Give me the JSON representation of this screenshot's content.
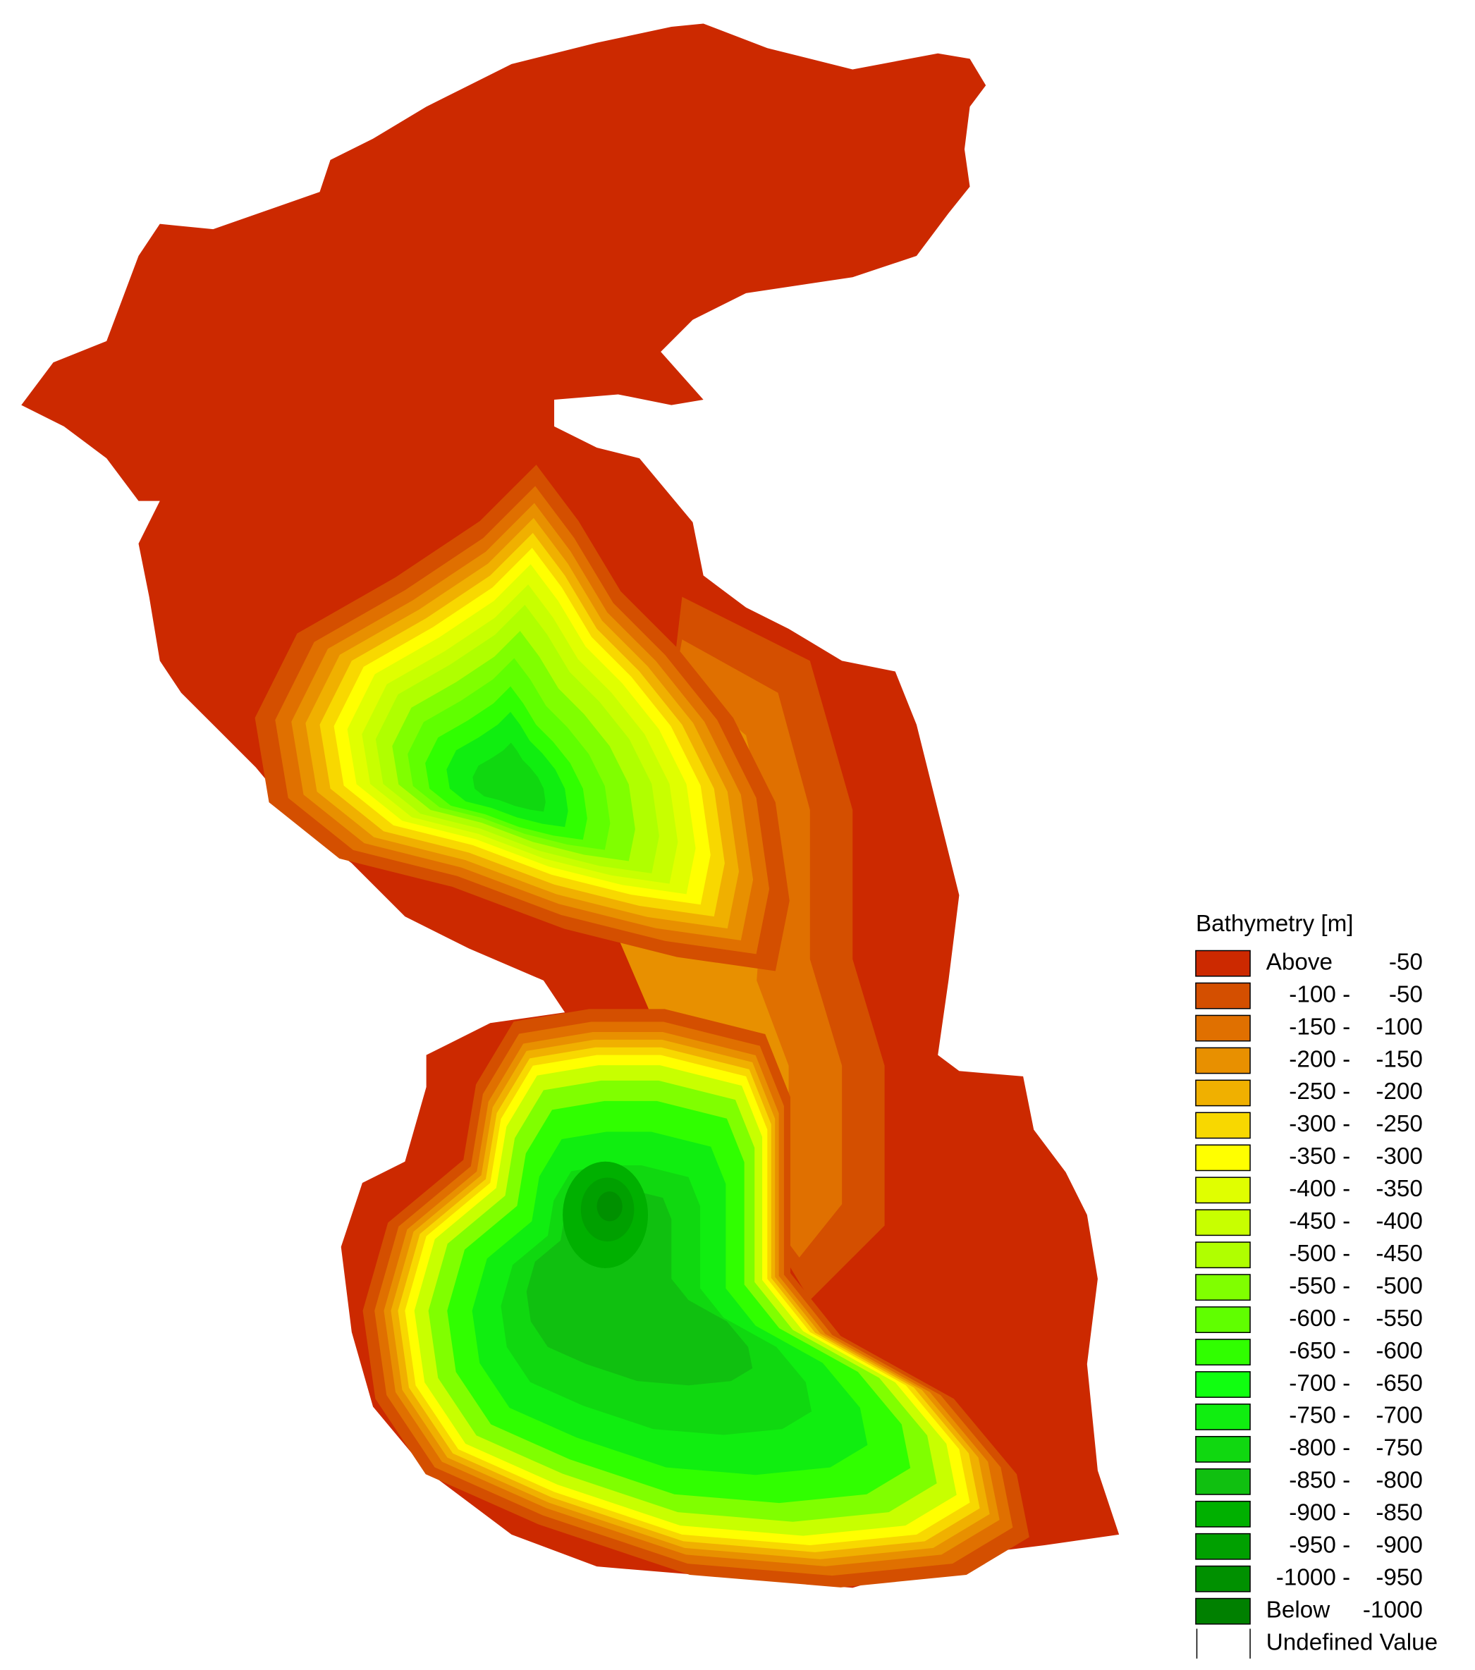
{
  "legend": {
    "title": "Bathymetry [m]",
    "items": [
      {
        "color": "#cc2900",
        "low": "Above",
        "high": "-50"
      },
      {
        "color": "#d44f00",
        "low": "-100 -",
        "high": "-50"
      },
      {
        "color": "#e07000",
        "low": "-150 -",
        "high": "-100"
      },
      {
        "color": "#e89000",
        "low": "-200 -",
        "high": "-150"
      },
      {
        "color": "#f0b000",
        "low": "-250 -",
        "high": "-200"
      },
      {
        "color": "#f8d800",
        "low": "-300 -",
        "high": "-250"
      },
      {
        "color": "#ffff00",
        "low": "-350 -",
        "high": "-300"
      },
      {
        "color": "#e0ff00",
        "low": "-400 -",
        "high": "-350"
      },
      {
        "color": "#c8ff00",
        "low": "-450 -",
        "high": "-400"
      },
      {
        "color": "#b0ff00",
        "low": "-500 -",
        "high": "-450"
      },
      {
        "color": "#80ff00",
        "low": "-550 -",
        "high": "-500"
      },
      {
        "color": "#60ff00",
        "low": "-600 -",
        "high": "-550"
      },
      {
        "color": "#30ff00",
        "low": "-650 -",
        "high": "-600"
      },
      {
        "color": "#10ff10",
        "low": "-700 -",
        "high": "-650"
      },
      {
        "color": "#10ee10",
        "low": "-750 -",
        "high": "-700"
      },
      {
        "color": "#10d810",
        "low": "-800 -",
        "high": "-750"
      },
      {
        "color": "#10c010",
        "low": "-850 -",
        "high": "-800"
      },
      {
        "color": "#00b000",
        "low": "-900 -",
        "high": "-850"
      },
      {
        "color": "#00a000",
        "low": "-950 -",
        "high": "-900"
      },
      {
        "color": "#009000",
        "low": "-1000 -",
        "high": "-950"
      },
      {
        "color": "#008000",
        "low": "Below",
        "high": "-1000"
      },
      {
        "color": "#ffffff",
        "label": "Undefined Value"
      }
    ]
  }
}
